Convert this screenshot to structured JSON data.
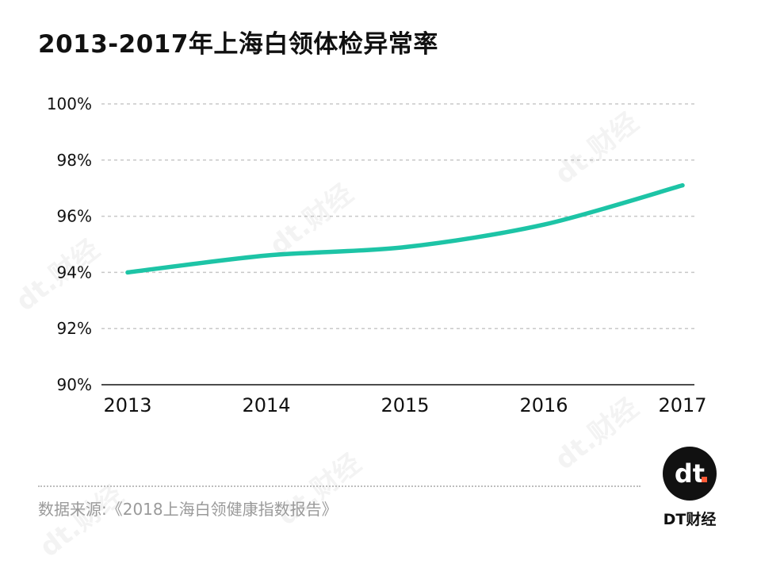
{
  "title": "2013-2017年上海白领体检异常率",
  "source": "数据来源:《2018上海白领健康指数报告》",
  "logo": {
    "mark": "dt.",
    "text": "DT财经",
    "watermark": "dt.财经"
  },
  "colors": {
    "line": "#1dc4a6",
    "grid": "#c8c8c8",
    "axis": "#111111",
    "text": "#111111",
    "source_text": "#9a9a9a",
    "logo_bg": "#111111",
    "logo_dot": "#ff5a36"
  },
  "chart_data": {
    "type": "line",
    "title": "2013-2017年上海白领体检异常率",
    "x": [
      "2013",
      "2014",
      "2015",
      "2016",
      "2017"
    ],
    "values": [
      94.0,
      94.6,
      94.9,
      95.7,
      97.1
    ],
    "ylim": [
      90,
      100
    ],
    "yticks": [
      90,
      92,
      94,
      96,
      98,
      100
    ],
    "ytick_labels": [
      "90%",
      "92%",
      "94%",
      "96%",
      "98%",
      "100%"
    ],
    "xlabel": "",
    "ylabel": "",
    "grid": true,
    "legend": "none"
  }
}
